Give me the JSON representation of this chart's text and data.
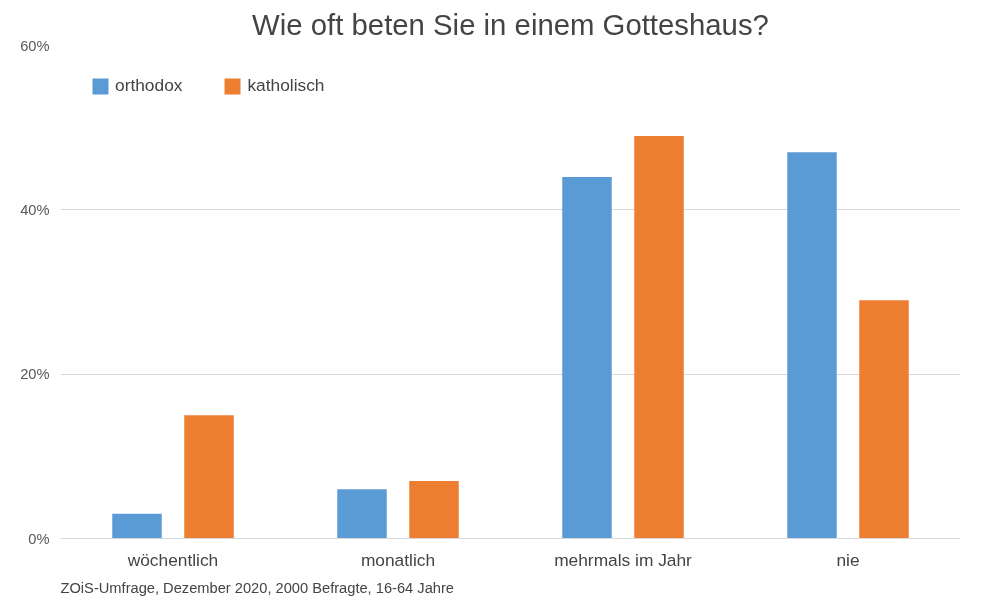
{
  "chart_data": {
    "type": "bar",
    "title": "Wie oft beten Sie in einem Gotteshaus?",
    "categories": [
      "wöchentlich",
      "monatlich",
      "mehrmals im Jahr",
      "nie"
    ],
    "series": [
      {
        "name": "orthodox",
        "color": "#5b9bd5",
        "values": [
          3,
          6,
          44,
          47
        ]
      },
      {
        "name": "katholisch",
        "color": "#ed7d31",
        "values": [
          15,
          7,
          49,
          29
        ]
      }
    ],
    "ylim": [
      0,
      60
    ],
    "yticks": [
      {
        "value": 0,
        "label": "0%"
      },
      {
        "value": 20,
        "label": "20%"
      },
      {
        "value": 40,
        "label": "40%"
      },
      {
        "value": 60,
        "label": "60%"
      }
    ],
    "grid": "y",
    "legend": "top left",
    "annotations": [
      "ZOiS-Umfrage, Dezember 2020, 2000 Befragte, 16-64 Jahre"
    ]
  }
}
